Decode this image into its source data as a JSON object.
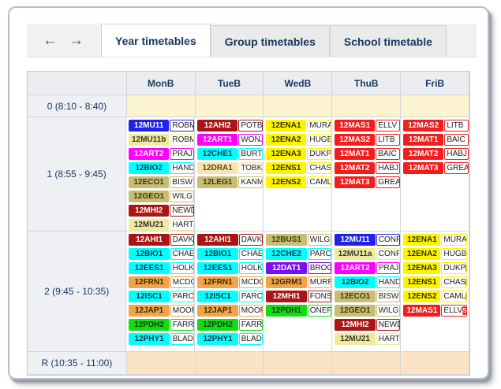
{
  "nav": {
    "back_icon": "←",
    "forward_icon": "→"
  },
  "tabs": [
    {
      "label": "Year timetables",
      "active": true
    },
    {
      "label": "Group timetables",
      "active": false
    },
    {
      "label": "School timetable",
      "active": false
    }
  ],
  "badge": {
    "glyph": "S",
    "bg": "#e81717",
    "fg": "#ffffff"
  },
  "colors": {
    "blue": {
      "bg": "#2121e8",
      "fg": "#ffffff"
    },
    "paleYellow": {
      "bg": "#f0eb9c",
      "fg": "#333333"
    },
    "magenta": {
      "bg": "#ff00ff",
      "fg": "#ffffff"
    },
    "cyan": {
      "bg": "#00ffff",
      "fg": "#113344"
    },
    "khaki": {
      "bg": "#c8bd72",
      "fg": "#3d380f"
    },
    "darkRed": {
      "bg": "#aa1515",
      "fg": "#ffffff"
    },
    "wheat": {
      "bg": "#f8e2b0",
      "fg": "#5a4516"
    },
    "red": {
      "bg": "#f31d1d",
      "fg": "#ffffff"
    },
    "yellow": {
      "bg": "#fdf400",
      "fg": "#333300"
    },
    "orange": {
      "bg": "#f2a44a",
      "fg": "#3c2a00"
    },
    "green": {
      "bg": "#12dd12",
      "fg": "#0c3a0c"
    },
    "purple": {
      "bg": "#7b0df2",
      "fg": "#ffffff"
    }
  },
  "table": {
    "days": [
      "MonB",
      "TueB",
      "WedB",
      "ThuB",
      "FriB"
    ],
    "rows": [
      {
        "id": "0",
        "label": "0  (8:10 - 8:40)",
        "kind": "empty",
        "bg": "#fcf3cf"
      },
      {
        "id": "1",
        "label": "1  (8:55 - 9:45)",
        "kind": "lesson",
        "cells": [
          [
            {
              "c": "12MU11",
              "t": "ROBM",
              "k": "blue"
            },
            {
              "c": "12MU11b",
              "t": "ROBM",
              "k": "paleYellow"
            },
            {
              "c": "12ART2",
              "t": "PRAJ",
              "k": "magenta"
            },
            {
              "c": "12BIO2",
              "t": "HAND",
              "k": "cyan"
            },
            {
              "c": "12ECO1",
              "t": "BISW",
              "k": "khaki"
            },
            {
              "c": "12GEO1",
              "t": "WILG",
              "k": "khaki"
            },
            {
              "c": "12MHI2",
              "t": "NEWD",
              "k": "darkRed"
            },
            {
              "c": "12MU21",
              "t": "HART",
              "k": "paleYellow"
            }
          ],
          [
            {
              "c": "12AHI2",
              "t": "POTB",
              "k": "darkRed"
            },
            {
              "c": "12ART1",
              "t": "WONJ",
              "k": "magenta"
            },
            {
              "c": "12CHE1",
              "t": "BURT",
              "k": "cyan"
            },
            {
              "c": "12DRA1",
              "t": "TOBK",
              "k": "wheat"
            },
            {
              "c": "12LEG1",
              "t": "KANM",
              "k": "khaki"
            }
          ],
          [
            {
              "c": "12ENA1",
              "t": "MURA",
              "k": "yellow"
            },
            {
              "c": "12ENA2",
              "t": "HUGB",
              "k": "yellow"
            },
            {
              "c": "12ENA3",
              "t": "DUKP",
              "k": "yellow"
            },
            {
              "c": "12ENS1",
              "t": "CHAS",
              "k": "yellow"
            },
            {
              "c": "12ENS2",
              "t": "CAML",
              "k": "yellow"
            }
          ],
          [
            {
              "c": "12MAS1",
              "t": "ELLV",
              "k": "red"
            },
            {
              "c": "12MAS2",
              "t": "LITB",
              "k": "red"
            },
            {
              "c": "12MAT1",
              "t": "BAIC",
              "k": "red"
            },
            {
              "c": "12MAT2",
              "t": "HABJ",
              "k": "red"
            },
            {
              "c": "12MAT3",
              "t": "GREA",
              "k": "red"
            }
          ],
          [
            {
              "c": "12MAS2",
              "t": "LITB",
              "k": "red"
            },
            {
              "c": "12MAT1",
              "t": "BAIC",
              "k": "red"
            },
            {
              "c": "12MAT2",
              "t": "HABJ",
              "k": "red"
            },
            {
              "c": "12MAT3",
              "t": "GREA",
              "k": "red"
            }
          ]
        ]
      },
      {
        "id": "2",
        "label": "2  (9:45 - 10:35)",
        "kind": "lesson",
        "cells": [
          [
            {
              "c": "12AHI1",
              "t": "DAVK",
              "k": "darkRed"
            },
            {
              "c": "12BIO1",
              "t": "CHAE",
              "k": "cyan"
            },
            {
              "c": "12EES1",
              "t": "HOLK",
              "k": "cyan"
            },
            {
              "c": "12FRN1",
              "t": "MCDC",
              "k": "orange"
            },
            {
              "c": "12ISC1",
              "t": "PARC",
              "k": "cyan"
            },
            {
              "c": "12JAP1",
              "t": "MOOR",
              "k": "orange"
            },
            {
              "c": "12PDH2",
              "t": "FARR",
              "k": "green"
            },
            {
              "c": "12PHY1",
              "t": "BLAD",
              "k": "cyan"
            }
          ],
          [
            {
              "c": "12AHI1",
              "t": "DAVK",
              "k": "darkRed"
            },
            {
              "c": "12BIO1",
              "t": "CHAE",
              "k": "cyan"
            },
            {
              "c": "12EES1",
              "t": "HOLK",
              "k": "cyan"
            },
            {
              "c": "12FRN1",
              "t": "MCDC",
              "k": "orange"
            },
            {
              "c": "12ISC1",
              "t": "PARC",
              "k": "cyan"
            },
            {
              "c": "12JAP1",
              "t": "MOOR",
              "k": "orange"
            },
            {
              "c": "12PDH2",
              "t": "FARR",
              "k": "green"
            },
            {
              "c": "12PHY1",
              "t": "BLAD",
              "k": "cyan"
            }
          ],
          [
            {
              "c": "12BUS1",
              "t": "WILG",
              "k": "khaki"
            },
            {
              "c": "12CHE2",
              "t": "PARC",
              "k": "cyan"
            },
            {
              "c": "12DAT1",
              "t": "BROG",
              "k": "purple"
            },
            {
              "c": "12GRM1",
              "t": "MURR",
              "k": "orange"
            },
            {
              "c": "12MHI1",
              "t": "FONS",
              "k": "darkRed"
            },
            {
              "c": "12PDH1",
              "t": "ONEP",
              "k": "green"
            }
          ],
          [
            {
              "c": "12MU11",
              "t": "CONP",
              "k": "blue"
            },
            {
              "c": "12MU11a",
              "t": "CONP",
              "k": "paleYellow"
            },
            {
              "c": "12ART2",
              "t": "PRAJ",
              "k": "magenta"
            },
            {
              "c": "12BIO2",
              "t": "HAND",
              "k": "cyan"
            },
            {
              "c": "12ECO1",
              "t": "BISW",
              "k": "khaki"
            },
            {
              "c": "12GEO1",
              "t": "WILG",
              "k": "khaki"
            },
            {
              "c": "12MHI2",
              "t": "NEWD",
              "k": "darkRed"
            },
            {
              "c": "12MU21",
              "t": "HART",
              "k": "paleYellow"
            }
          ],
          [
            {
              "c": "12ENA1",
              "t": "MURA",
              "k": "yellow",
              "s": true
            },
            {
              "c": "12ENA2",
              "t": "HUGB",
              "k": "yellow",
              "s": true
            },
            {
              "c": "12ENA3",
              "t": "DUKP",
              "k": "yellow",
              "s": true
            },
            {
              "c": "12ENS1",
              "t": "CHAS",
              "k": "yellow",
              "s": true
            },
            {
              "c": "12ENS2",
              "t": "CAML",
              "k": "yellow",
              "s": true
            },
            {
              "c": "12MAS1",
              "t": "ELLV",
              "k": "red",
              "s": true
            }
          ]
        ]
      },
      {
        "id": "R",
        "label": "R  (10:35 - 11:00)",
        "kind": "empty",
        "bg": "#fae4c4"
      }
    ]
  }
}
